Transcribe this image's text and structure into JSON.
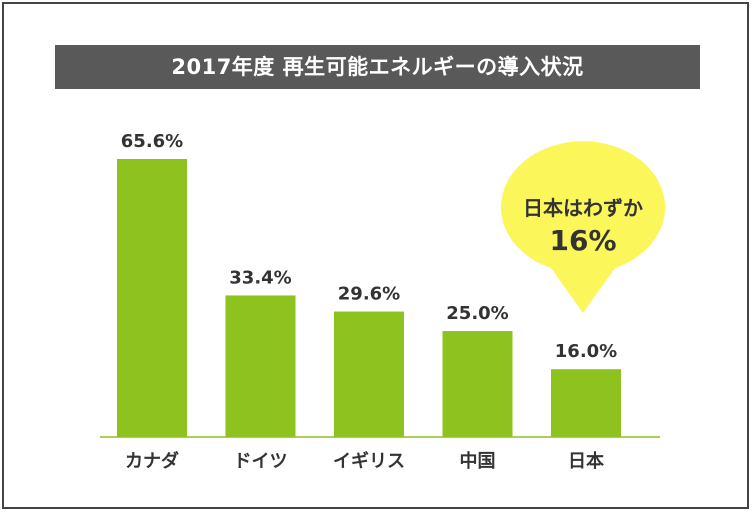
{
  "chart_data": {
    "type": "bar",
    "title": "2017年度 再生可能エネルギーの導入状況",
    "categories": [
      "カナダ",
      "ドイツ",
      "イギリス",
      "中国",
      "日本"
    ],
    "values": [
      65.6,
      33.4,
      29.6,
      25.0,
      16.0
    ],
    "value_labels": [
      "65.6%",
      "33.4%",
      "29.6%",
      "25.0%",
      "16.0%"
    ],
    "xlabel": "",
    "ylabel": "",
    "ylim": [
      0,
      70
    ],
    "grid": false,
    "bar_color": "#8dc21f",
    "axis_color": "#8dc21f",
    "annotation": {
      "line1": "日本はわずか",
      "line2": "16%",
      "color": "#fbf65a",
      "points_to": "日本"
    }
  }
}
